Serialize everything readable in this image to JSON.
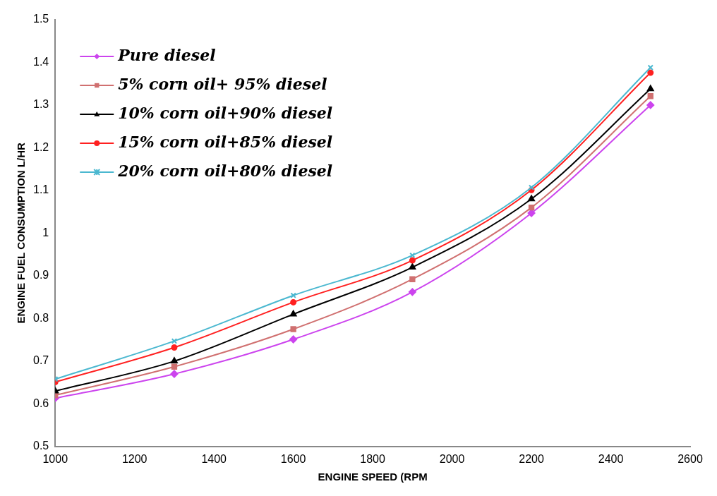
{
  "chart_data": {
    "type": "line",
    "xlabel": "ENGINE SPEED (RPM",
    "ylabel": "ENGINE FUEL CONSUMPTION L/HR",
    "x": [
      1000,
      1300,
      1600,
      1900,
      2200,
      2500
    ],
    "series": [
      {
        "name": "Pure diesel",
        "color": "#cc44ee",
        "marker": "diamond",
        "values": [
          0.613,
          0.67,
          0.751,
          0.862,
          1.047,
          1.3
        ]
      },
      {
        "name": "5% corn oil+ 95% diesel",
        "color": "#d07070",
        "marker": "square",
        "values": [
          0.62,
          0.687,
          0.775,
          0.892,
          1.06,
          1.321
        ]
      },
      {
        "name": "10% corn oil+90% diesel",
        "color": "#000000",
        "marker": "triangle",
        "values": [
          0.63,
          0.7,
          0.81,
          0.92,
          1.08,
          1.338
        ]
      },
      {
        "name": "15% corn oil+85% diesel",
        "color": "#ff2020",
        "marker": "circle",
        "values": [
          0.651,
          0.732,
          0.838,
          0.936,
          1.101,
          1.376
        ]
      },
      {
        "name": "20% corn oil+80% diesel",
        "color": "#4bb8d0",
        "marker": "cross",
        "values": [
          0.658,
          0.747,
          0.854,
          0.948,
          1.107,
          1.388
        ]
      }
    ],
    "xlim": [
      1000,
      2600
    ],
    "xticks": [
      1000,
      1200,
      1400,
      1600,
      1800,
      2000,
      2200,
      2400,
      2600
    ],
    "ylim": [
      0.5,
      1.5
    ],
    "yticks": [
      0.5,
      0.6,
      0.7,
      0.8,
      0.9,
      1,
      1.1,
      1.2,
      1.3,
      1.4,
      1.5
    ],
    "grid": false,
    "legend": "top left"
  }
}
